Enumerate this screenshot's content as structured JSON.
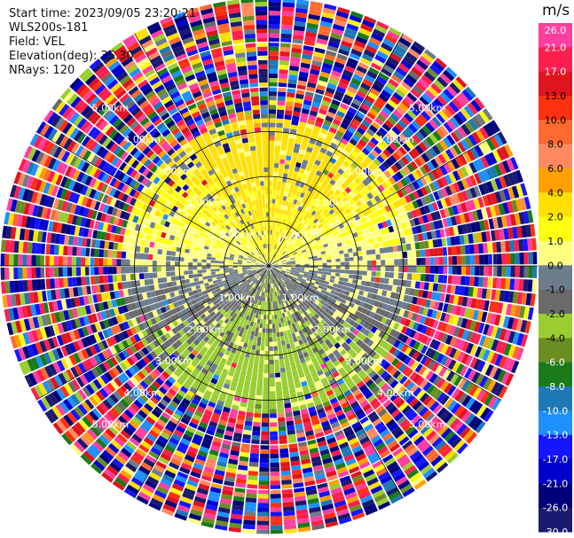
{
  "header": {
    "start_time": "Start time: 2023/09/05 23:20:21",
    "instrument": "WLS200s-181",
    "field": "Field: VEL",
    "elevation": "Elevation(deg): 35.30",
    "nrays": "NRays: 120"
  },
  "chart_data": {
    "type": "heatmap",
    "subtype": "polar PPI scan",
    "field": "VEL",
    "units": "m/s",
    "n_rays": 120,
    "max_range_km": 6.0,
    "range_ring_labels_km": [
      "1.00km",
      "2.00km",
      "3.00km",
      "4.00km",
      "5.00km"
    ],
    "grid": true,
    "colorbar": {
      "label": "m/s",
      "ticks": [
        "26.0",
        "21.0",
        "17.0",
        "13.0",
        "10.0",
        "8.0",
        "6.0",
        "4.0",
        "2.0",
        "1.0",
        "0.0",
        "-1.0",
        "-2.0",
        "-4.0",
        "-6.0",
        "-8.0",
        "-10.0",
        "-13.0",
        "-17.0",
        "-21.0",
        "-26.0",
        "-30.0"
      ],
      "colors": [
        "#ff3f9f",
        "#ff1f4f",
        "#e0141e",
        "#ff3010",
        "#ff6a30",
        "#ff8a60",
        "#ffa000",
        "#ffe000",
        "#ffff10",
        "#ffff80",
        "#6e7d8c",
        "#6a6a6a",
        "#9acd32",
        "#6b8e23",
        "#1a7a1a",
        "#1e78b4",
        "#1e90ff",
        "#1515ff",
        "#0000cd",
        "#00007a",
        "#1a1a6e",
        "#3a3a8c"
      ]
    },
    "pattern_summary": {
      "inner_near_zero_km": 3.2,
      "north_sector": "positive 1-6 m/s (yellow/orange)",
      "south_sector": "negative -1 to -6 m/s (green)",
      "beyond_km": 3.2,
      "outer": "noise across full colour range"
    }
  }
}
